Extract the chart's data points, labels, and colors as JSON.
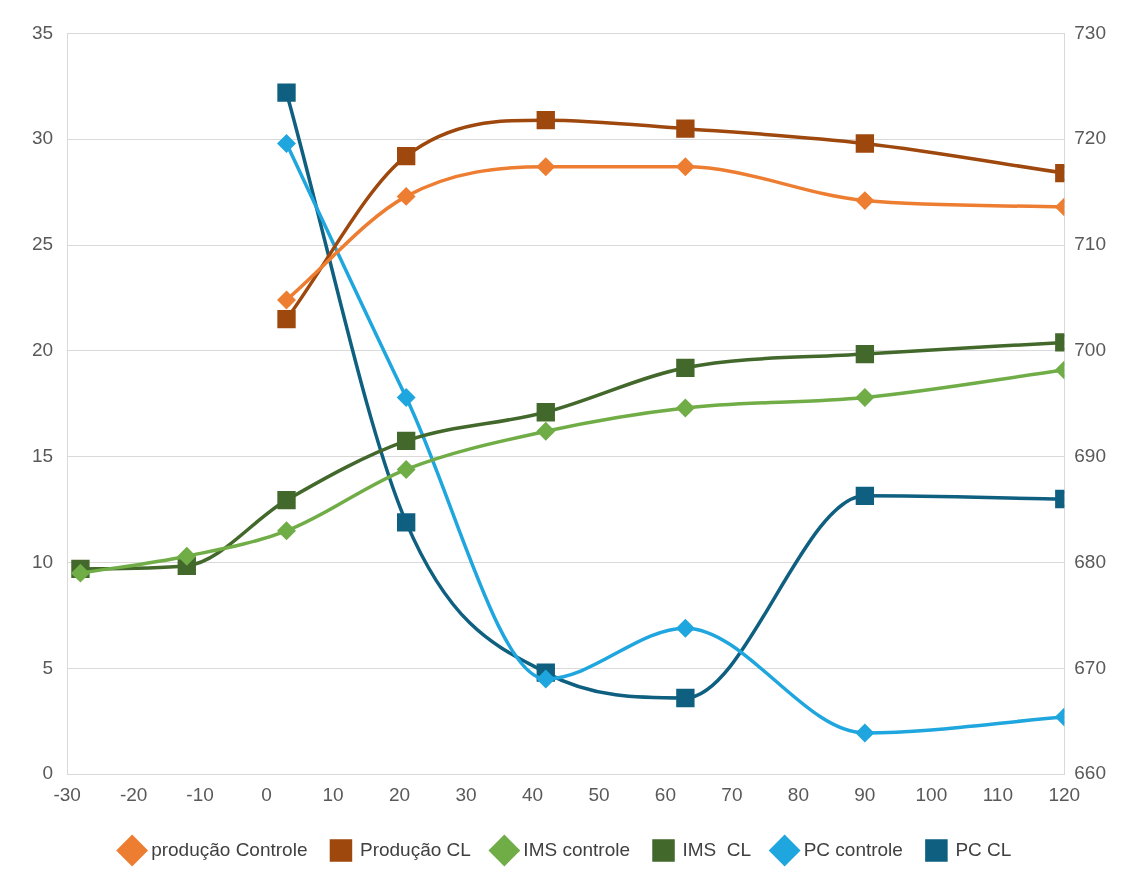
{
  "chart_data": {
    "type": "line",
    "x": [
      -28,
      -12,
      3,
      21,
      42,
      63,
      90,
      120
    ],
    "xlim": [
      -30,
      120
    ],
    "xticks": [
      -30,
      -20,
      -10,
      0,
      10,
      20,
      30,
      40,
      50,
      60,
      70,
      80,
      90,
      100,
      110,
      120
    ],
    "ylim": [
      0,
      35
    ],
    "yticks": [
      0,
      5,
      10,
      15,
      20,
      25,
      30,
      35
    ],
    "y2lim": [
      660,
      730
    ],
    "y2ticks": [
      660,
      670,
      680,
      690,
      700,
      710,
      720,
      730
    ],
    "grid": "y",
    "legend": "bottom",
    "series": [
      {
        "name": "produção Controle",
        "color": "#ed7d31",
        "marker": "diamond",
        "x": [
          3,
          21,
          42,
          63,
          90,
          120
        ],
        "values": [
          22.4,
          27.3,
          28.7,
          28.7,
          27.1,
          26.8
        ]
      },
      {
        "name": "Produção CL",
        "color": "#9e480e",
        "marker": "square",
        "x": [
          3,
          21,
          42,
          63,
          90,
          120
        ],
        "values": [
          21.5,
          29.2,
          30.9,
          30.5,
          29.8,
          28.4
        ]
      },
      {
        "name": "IMS controle",
        "color": "#70ad47",
        "marker": "diamond",
        "values": [
          9.5,
          10.3,
          11.5,
          14.4,
          16.2,
          17.3,
          17.8,
          19.1
        ]
      },
      {
        "name": "IMS  CL",
        "color": "#43682b",
        "marker": "square",
        "values": [
          9.7,
          9.85,
          12.95,
          15.75,
          17.1,
          19.2,
          19.85,
          20.4
        ]
      },
      {
        "name": "PC controle",
        "color": "#1fa6de",
        "marker": "diamond",
        "axis": "y2",
        "x": [
          3,
          21,
          42,
          63,
          90,
          120
        ],
        "values": [
          719.6,
          695.6,
          669,
          673.8,
          663.9,
          665.4
        ]
      },
      {
        "name": "PC CL",
        "color": "#0e5f80",
        "marker": "square",
        "axis": "y2",
        "x": [
          3,
          21,
          42,
          63,
          90,
          120
        ],
        "values": [
          724.4,
          683.8,
          669.6,
          667.2,
          686.3,
          686
        ]
      }
    ]
  }
}
